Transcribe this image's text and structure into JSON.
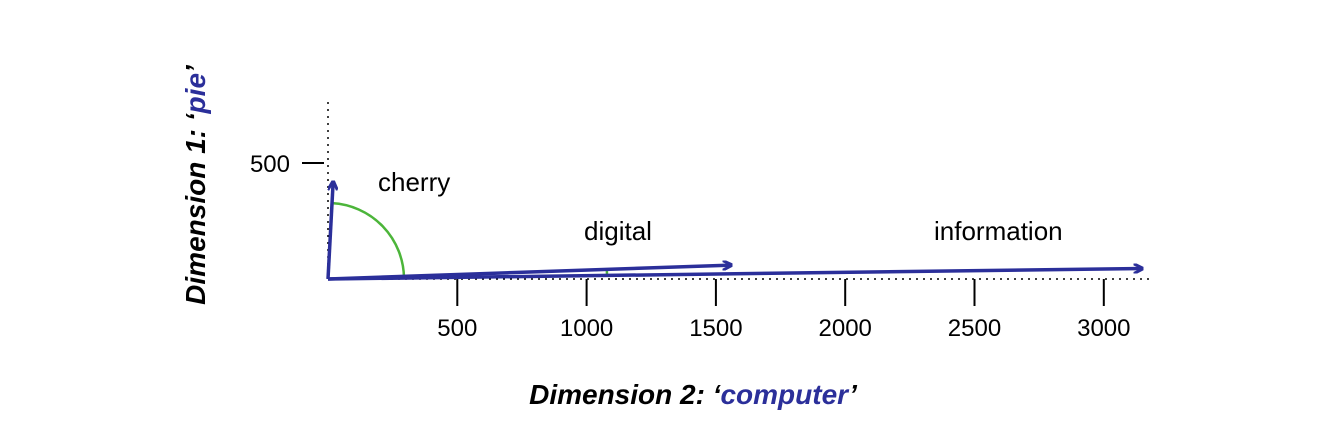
{
  "chart_data": {
    "type": "vector-plot",
    "x_axis": {
      "title_prefix": "Dimension 2: ‘",
      "title_word": "computer",
      "title_suffix": "’",
      "ticks": [
        500,
        1000,
        1500,
        2000,
        2500,
        3000
      ],
      "tick_labels": [
        "500",
        "1000",
        "1500",
        "2000",
        "2500",
        "3000"
      ]
    },
    "y_axis": {
      "title_prefix": "Dimension 1: ‘",
      "title_word": "pie",
      "title_suffix": "’",
      "ticks": [
        500
      ],
      "tick_labels": [
        "500"
      ]
    },
    "vectors": [
      {
        "label": "cherry",
        "x": 20,
        "y": 420
      },
      {
        "label": "digital",
        "x": 1560,
        "y": 60
      },
      {
        "label": "information",
        "x": 3150,
        "y": 45
      }
    ],
    "colors": {
      "vector": "#2b2f9a",
      "angle_arc": "#4cb53a",
      "axis": "#000000",
      "title_accent": "#2b2f9a"
    }
  }
}
